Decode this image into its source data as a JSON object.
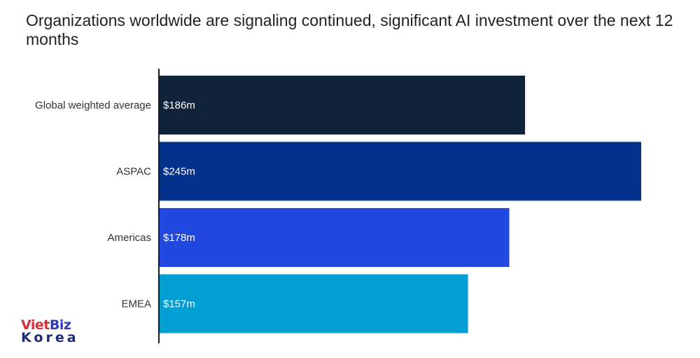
{
  "title": "Organizations worldwide are signaling continued, significant AI investment over the next 12 months",
  "logo": {
    "text_a": "Viet",
    "text_b": "Biz",
    "text_c": "Korea"
  },
  "chart_data": {
    "type": "bar",
    "orientation": "horizontal",
    "title": "Organizations worldwide are signaling continued, significant AI investment over the next 12 months",
    "categories": [
      "Global weighted average",
      "ASPAC",
      "Americas",
      "EMEA"
    ],
    "values": [
      186,
      245,
      178,
      157
    ],
    "value_labels": [
      "$186m",
      "$245m",
      "$178m",
      "$157m"
    ],
    "colors": [
      "#0f243b",
      "#04318c",
      "#2149e0",
      "#009ed3"
    ],
    "unit": "$m",
    "xlim": [
      0,
      245
    ],
    "grid": false,
    "legend": "none"
  }
}
